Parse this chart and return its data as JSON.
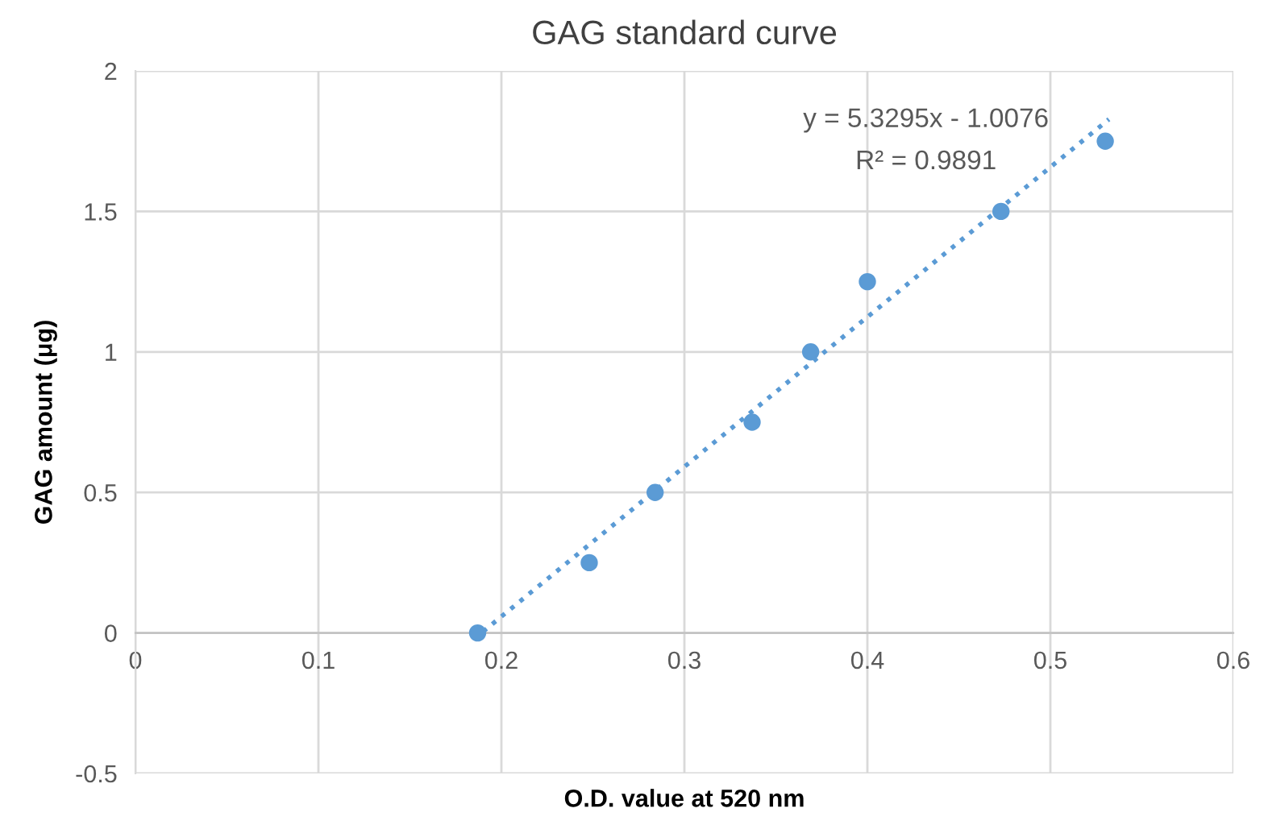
{
  "chart_data": {
    "type": "scatter",
    "title": "GAG standard curve",
    "xlabel": "O.D. value at 520 nm",
    "ylabel": "GAG amount (μg)",
    "series": [
      {
        "color": "#5b9bd5",
        "marker": "circle",
        "x": [
          0.187,
          0.248,
          0.284,
          0.337,
          0.369,
          0.4,
          0.473,
          0.53
        ],
        "values": [
          0,
          0.25,
          0.5,
          0.75,
          1.0,
          1.25,
          1.5,
          1.75
        ]
      },
      {
        "type": "line",
        "color": "#5b9bd5",
        "line_style": "dotted",
        "marker": "none",
        "x": [
          0.19,
          0.532
        ],
        "values": [
          0.005,
          1.828
        ]
      }
    ],
    "annotations": [
      "y = 5.3295x - 1.0076",
      "R² = 0.9891"
    ],
    "xlim": [
      0,
      0.6
    ],
    "xticks": [
      0,
      0.1,
      0.2,
      0.3,
      0.4,
      0.5,
      0.6
    ],
    "ylim": [
      -0.5,
      2
    ],
    "yticks": [
      -0.5,
      0,
      0.5,
      1,
      1.5,
      2
    ],
    "grid": true,
    "legend": false
  }
}
